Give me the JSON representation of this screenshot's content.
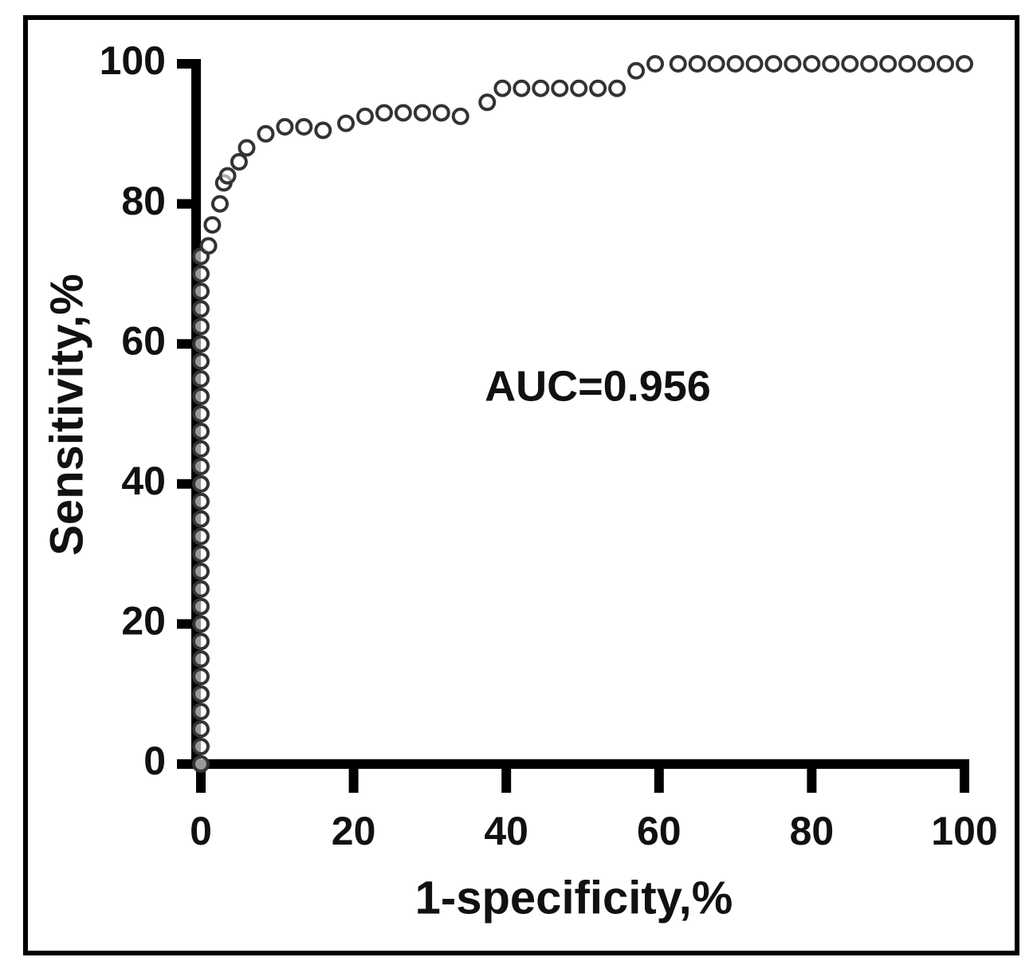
{
  "chart_data": {
    "type": "scatter",
    "x_label": "1-specificity,%",
    "y_label": "Sensitivity,%",
    "annotation": "AUC=0.956",
    "marker_color": "#333333",
    "x": [
      0,
      0,
      0,
      0,
      0,
      0,
      0,
      0,
      0,
      0,
      0,
      0,
      0,
      0,
      0,
      0,
      0,
      0,
      0,
      0,
      0,
      0,
      0,
      0,
      0,
      0,
      0,
      0,
      0,
      0,
      1,
      1.5,
      2.5,
      3,
      3.5,
      5,
      6,
      8.5,
      11,
      13.5,
      16,
      19,
      21.5,
      24,
      26.5,
      29,
      31.5,
      34,
      37.5,
      39.5,
      42,
      44.5,
      47,
      49.5,
      52,
      54.5,
      57,
      59.5,
      62.5,
      65,
      67.5,
      70,
      72.5,
      75,
      77.5,
      80,
      82.5,
      85,
      87.5,
      90,
      92.5,
      95,
      97.5,
      100
    ],
    "values": [
      0,
      2.5,
      5,
      7.5,
      10,
      12.5,
      15,
      17.5,
      20,
      22.5,
      25,
      27.5,
      30,
      32.5,
      35,
      37.5,
      40,
      42.5,
      45,
      47.5,
      50,
      52.5,
      55,
      57.5,
      60,
      62.5,
      65,
      67.5,
      70,
      72.5,
      74,
      77,
      80,
      83,
      84,
      86,
      88,
      90,
      91,
      91,
      90.5,
      91.5,
      92.5,
      93,
      93,
      93,
      93,
      92.5,
      94.5,
      96.5,
      96.5,
      96.5,
      96.5,
      96.5,
      96.5,
      96.5,
      99,
      100,
      100,
      100,
      100,
      100,
      100,
      100,
      100,
      100,
      100,
      100,
      100,
      100,
      100,
      100,
      100,
      100
    ],
    "xlim": [
      0,
      100
    ],
    "ylim": [
      0,
      100
    ],
    "xticks": [
      0,
      20,
      40,
      60,
      80,
      100
    ],
    "yticks": [
      0,
      20,
      40,
      60,
      80,
      100
    ]
  }
}
